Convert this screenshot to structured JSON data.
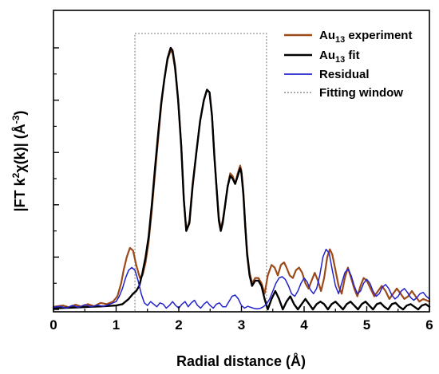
{
  "chart_data": {
    "type": "line",
    "xlabel": "Radial distance (Å)",
    "ylabel_parts": [
      "|FT k",
      "2",
      "χ(k)| (Å",
      "-3",
      ")"
    ],
    "xlim": [
      0,
      6
    ],
    "ylim": [
      0,
      1
    ],
    "x_ticks": [
      "0",
      "1",
      "2",
      "3",
      "4",
      "5",
      "6"
    ],
    "y_ticks_labeled": false,
    "fitting_window": {
      "x": [
        1.3,
        3.4
      ],
      "y": [
        0,
        1.0
      ],
      "name": "Fitting window"
    },
    "legend_position": "top-right",
    "legend": [
      {
        "id": "experiment",
        "parts": [
          "Au",
          "13",
          " experiment"
        ],
        "color": "#9c4a1a",
        "style": "solid"
      },
      {
        "id": "fit",
        "parts": [
          "Au",
          "13",
          " fit"
        ],
        "color": "#000000",
        "style": "solid"
      },
      {
        "id": "residual",
        "parts": [
          "Residual"
        ],
        "color": "#2222cc",
        "style": "solid"
      },
      {
        "id": "window",
        "parts": [
          "Fitting window"
        ],
        "color": "#777777",
        "style": "dotted"
      }
    ],
    "series": [
      {
        "id": "experiment",
        "color": "#9c4a1a",
        "width": 2.2,
        "x": [
          0.0,
          0.15,
          0.25,
          0.35,
          0.45,
          0.55,
          0.65,
          0.75,
          0.85,
          0.95,
          1.02,
          1.08,
          1.12,
          1.17,
          1.22,
          1.27,
          1.32,
          1.38,
          1.42,
          1.47,
          1.52,
          1.57,
          1.62,
          1.67,
          1.72,
          1.77,
          1.82,
          1.87,
          1.9,
          1.94,
          1.99,
          2.04,
          2.08,
          2.12,
          2.17,
          2.22,
          2.28,
          2.34,
          2.4,
          2.45,
          2.49,
          2.53,
          2.57,
          2.61,
          2.64,
          2.67,
          2.7,
          2.74,
          2.78,
          2.82,
          2.86,
          2.9,
          2.94,
          2.98,
          3.0,
          3.03,
          3.06,
          3.09,
          3.13,
          3.17,
          3.22,
          3.27,
          3.32,
          3.37,
          3.42,
          3.48,
          3.53,
          3.58,
          3.63,
          3.68,
          3.72,
          3.77,
          3.82,
          3.87,
          3.92,
          3.97,
          4.02,
          4.07,
          4.12,
          4.17,
          4.22,
          4.27,
          4.32,
          4.37,
          4.41,
          4.45,
          4.5,
          4.55,
          4.6,
          4.65,
          4.7,
          4.75,
          4.8,
          4.85,
          4.9,
          4.95,
          5.0,
          5.06,
          5.12,
          5.18,
          5.24,
          5.3,
          5.36,
          5.42,
          5.48,
          5.54,
          5.6,
          5.66,
          5.72,
          5.78,
          5.84,
          5.9,
          5.95,
          6.0
        ],
        "y": [
          0.01,
          0.015,
          0.008,
          0.018,
          0.01,
          0.02,
          0.012,
          0.025,
          0.02,
          0.03,
          0.05,
          0.1,
          0.15,
          0.2,
          0.235,
          0.225,
          0.17,
          0.12,
          0.13,
          0.18,
          0.26,
          0.38,
          0.52,
          0.65,
          0.78,
          0.88,
          0.955,
          0.99,
          0.98,
          0.92,
          0.8,
          0.63,
          0.42,
          0.3,
          0.34,
          0.48,
          0.6,
          0.72,
          0.8,
          0.84,
          0.83,
          0.74,
          0.58,
          0.44,
          0.35,
          0.31,
          0.34,
          0.4,
          0.47,
          0.52,
          0.51,
          0.48,
          0.52,
          0.55,
          0.53,
          0.45,
          0.33,
          0.22,
          0.14,
          0.1,
          0.12,
          0.12,
          0.1,
          0.06,
          0.13,
          0.17,
          0.16,
          0.13,
          0.17,
          0.18,
          0.16,
          0.13,
          0.12,
          0.15,
          0.16,
          0.14,
          0.1,
          0.08,
          0.11,
          0.14,
          0.11,
          0.07,
          0.12,
          0.2,
          0.23,
          0.21,
          0.15,
          0.09,
          0.06,
          0.12,
          0.16,
          0.12,
          0.08,
          0.05,
          0.09,
          0.12,
          0.11,
          0.08,
          0.05,
          0.07,
          0.09,
          0.07,
          0.04,
          0.06,
          0.08,
          0.06,
          0.04,
          0.05,
          0.07,
          0.05,
          0.03,
          0.04,
          0.035,
          0.03
        ]
      },
      {
        "id": "fit",
        "color": "#000000",
        "width": 2.4,
        "x": [
          0.0,
          0.2,
          0.4,
          0.6,
          0.8,
          1.0,
          1.1,
          1.2,
          1.27,
          1.32,
          1.37,
          1.42,
          1.47,
          1.52,
          1.57,
          1.62,
          1.67,
          1.72,
          1.77,
          1.82,
          1.87,
          1.9,
          1.94,
          1.99,
          2.04,
          2.08,
          2.12,
          2.17,
          2.22,
          2.28,
          2.34,
          2.4,
          2.45,
          2.49,
          2.53,
          2.57,
          2.61,
          2.64,
          2.67,
          2.7,
          2.74,
          2.78,
          2.82,
          2.86,
          2.9,
          2.94,
          2.98,
          3.0,
          3.03,
          3.06,
          3.09,
          3.13,
          3.17,
          3.22,
          3.27,
          3.32,
          3.37,
          3.42,
          3.48,
          3.54,
          3.6,
          3.66,
          3.72,
          3.78,
          3.84,
          3.9,
          3.96,
          4.02,
          4.08,
          4.14,
          4.2,
          4.26,
          4.32,
          4.38,
          4.44,
          4.5,
          4.56,
          4.62,
          4.68,
          4.74,
          4.8,
          4.86,
          4.92,
          4.98,
          5.04,
          5.1,
          5.16,
          5.22,
          5.28,
          5.34,
          5.4,
          5.46,
          5.52,
          5.58,
          5.64,
          5.7,
          5.76,
          5.82,
          5.88,
          5.94,
          6.0
        ],
        "y": [
          0.004,
          0.006,
          0.008,
          0.01,
          0.012,
          0.015,
          0.02,
          0.04,
          0.06,
          0.07,
          0.09,
          0.14,
          0.2,
          0.28,
          0.4,
          0.54,
          0.67,
          0.79,
          0.88,
          0.96,
          1.0,
          0.99,
          0.93,
          0.8,
          0.62,
          0.42,
          0.3,
          0.33,
          0.47,
          0.6,
          0.72,
          0.8,
          0.84,
          0.83,
          0.74,
          0.58,
          0.44,
          0.34,
          0.3,
          0.33,
          0.4,
          0.47,
          0.51,
          0.5,
          0.48,
          0.51,
          0.54,
          0.52,
          0.44,
          0.32,
          0.21,
          0.13,
          0.09,
          0.11,
          0.11,
          0.09,
          0.04,
          0.0,
          0.04,
          0.07,
          0.04,
          0.0,
          0.03,
          0.05,
          0.02,
          0.0,
          0.02,
          0.04,
          0.02,
          0.0,
          0.02,
          0.03,
          0.02,
          0.0,
          0.02,
          0.03,
          0.015,
          0.0,
          0.02,
          0.03,
          0.015,
          0.0,
          0.02,
          0.03,
          0.015,
          0.0,
          0.02,
          0.025,
          0.01,
          0.0,
          0.02,
          0.025,
          0.01,
          0.0,
          0.015,
          0.02,
          0.01,
          0.0,
          0.015,
          0.02,
          0.01
        ]
      },
      {
        "id": "residual",
        "color": "#2222cc",
        "width": 1.5,
        "x": [
          0.0,
          0.1,
          0.2,
          0.3,
          0.4,
          0.5,
          0.6,
          0.7,
          0.8,
          0.9,
          1.0,
          1.05,
          1.1,
          1.15,
          1.2,
          1.25,
          1.3,
          1.35,
          1.4,
          1.45,
          1.5,
          1.55,
          1.6,
          1.65,
          1.7,
          1.75,
          1.8,
          1.85,
          1.9,
          1.95,
          2.0,
          2.05,
          2.1,
          2.15,
          2.2,
          2.25,
          2.3,
          2.35,
          2.4,
          2.45,
          2.5,
          2.55,
          2.6,
          2.65,
          2.7,
          2.75,
          2.8,
          2.85,
          2.9,
          2.95,
          3.0,
          3.05,
          3.1,
          3.15,
          3.2,
          3.25,
          3.3,
          3.35,
          3.4,
          3.45,
          3.5,
          3.55,
          3.6,
          3.65,
          3.7,
          3.75,
          3.8,
          3.85,
          3.9,
          3.95,
          4.0,
          4.05,
          4.1,
          4.15,
          4.2,
          4.25,
          4.3,
          4.35,
          4.4,
          4.45,
          4.5,
          4.55,
          4.6,
          4.65,
          4.7,
          4.75,
          4.8,
          4.85,
          4.9,
          4.95,
          5.0,
          5.05,
          5.1,
          5.15,
          5.2,
          5.25,
          5.3,
          5.35,
          5.4,
          5.45,
          5.5,
          5.55,
          5.6,
          5.65,
          5.7,
          5.75,
          5.8,
          5.85,
          5.9,
          5.95,
          6.0
        ],
        "y": [
          0.008,
          0.012,
          0.005,
          0.015,
          0.008,
          0.018,
          0.01,
          0.016,
          0.012,
          0.02,
          0.03,
          0.05,
          0.08,
          0.12,
          0.15,
          0.16,
          0.15,
          0.11,
          0.06,
          0.025,
          0.015,
          0.03,
          0.02,
          0.01,
          0.025,
          0.02,
          0.005,
          0.015,
          0.03,
          0.015,
          0.005,
          0.02,
          0.03,
          0.01,
          0.025,
          0.035,
          0.015,
          0.005,
          0.02,
          0.03,
          0.015,
          0.005,
          0.02,
          0.025,
          0.01,
          0.01,
          0.03,
          0.05,
          0.055,
          0.04,
          0.015,
          0.005,
          0.012,
          0.008,
          0.004,
          0.002,
          0.004,
          0.01,
          0.02,
          0.04,
          0.07,
          0.1,
          0.12,
          0.125,
          0.115,
          0.09,
          0.06,
          0.05,
          0.07,
          0.1,
          0.12,
          0.105,
          0.075,
          0.06,
          0.08,
          0.13,
          0.2,
          0.23,
          0.215,
          0.15,
          0.09,
          0.06,
          0.1,
          0.14,
          0.155,
          0.13,
          0.09,
          0.06,
          0.07,
          0.1,
          0.115,
          0.1,
          0.07,
          0.05,
          0.06,
          0.085,
          0.095,
          0.08,
          0.055,
          0.04,
          0.05,
          0.07,
          0.08,
          0.065,
          0.045,
          0.035,
          0.045,
          0.06,
          0.065,
          0.05,
          0.04
        ]
      }
    ]
  }
}
